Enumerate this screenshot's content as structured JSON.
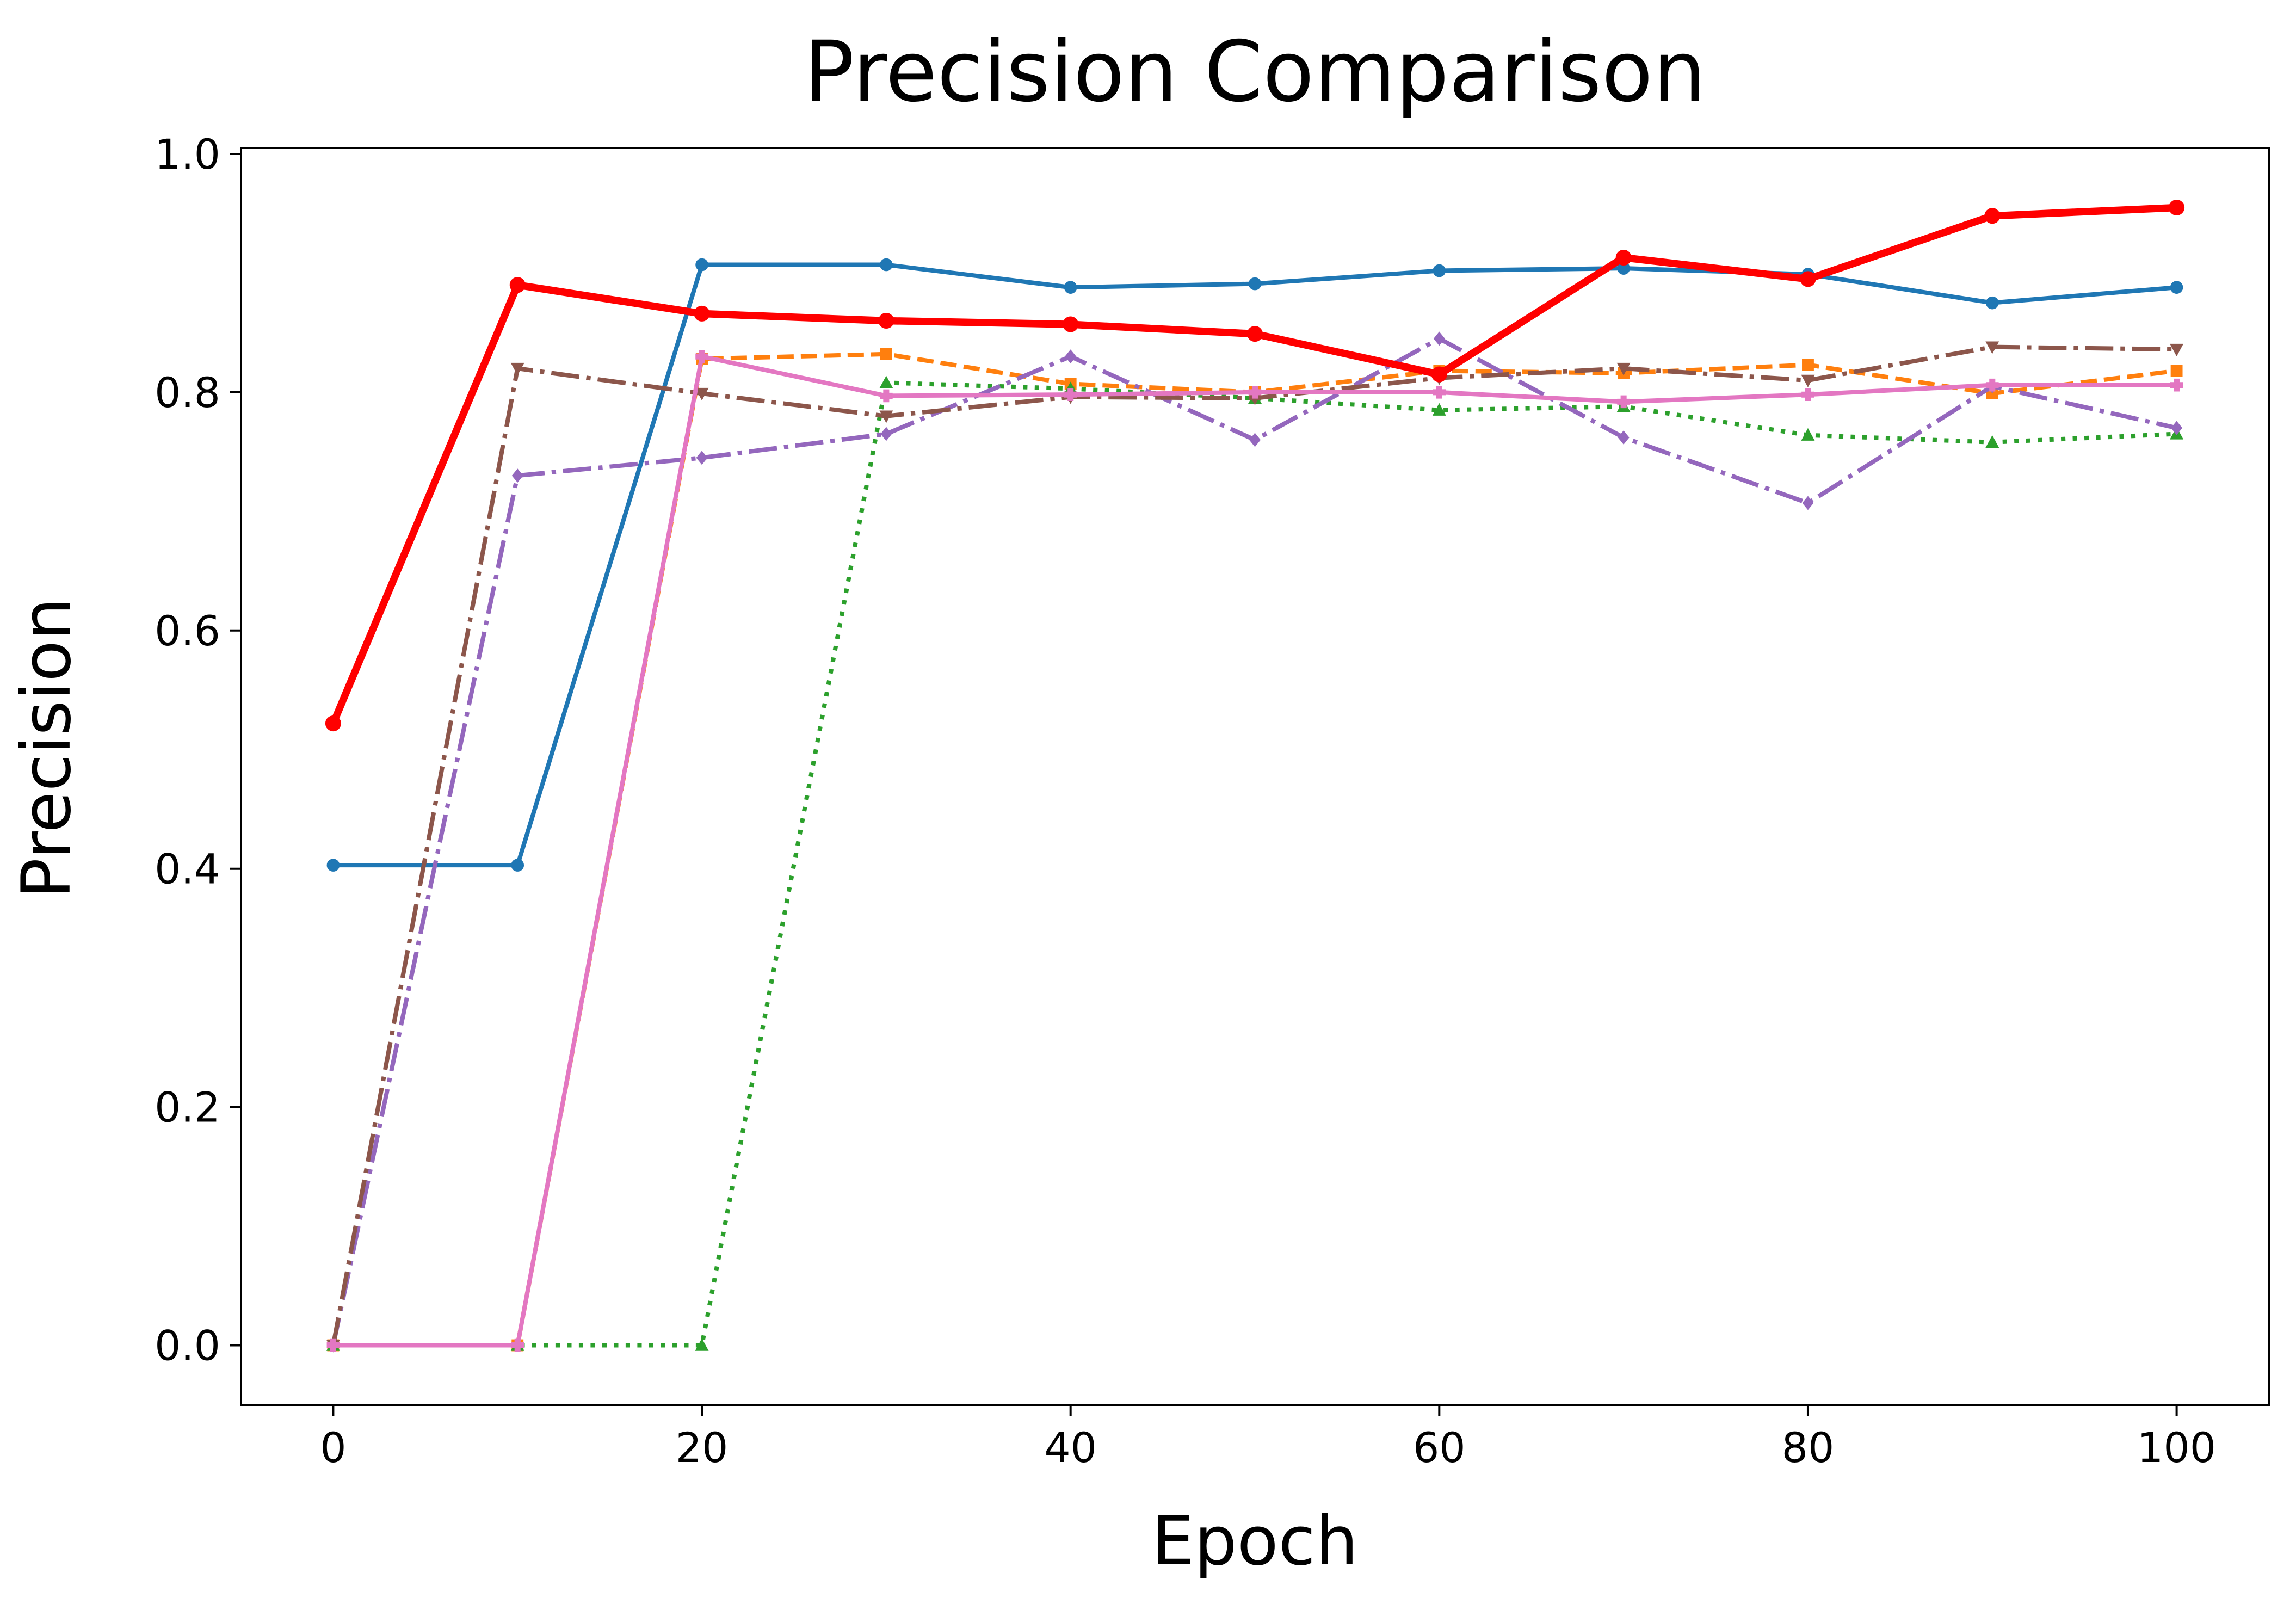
{
  "chart_data": {
    "type": "line",
    "title": "Precision Comparison",
    "xlabel": "Epoch",
    "ylabel": "Precision",
    "xlim": [
      -5,
      105
    ],
    "ylim": [
      -0.05,
      1.005
    ],
    "grid": false,
    "x": [
      0,
      10,
      20,
      30,
      40,
      50,
      60,
      70,
      80,
      90,
      100
    ],
    "xticks": [
      0,
      20,
      40,
      60,
      80,
      100
    ],
    "xtick_labels": [
      "0",
      "20",
      "40",
      "60",
      "80",
      "100"
    ],
    "yticks": [
      0.0,
      0.2,
      0.4,
      0.6,
      0.8,
      1.0
    ],
    "ytick_labels": [
      "0.0",
      "0.2",
      "0.4",
      "0.6",
      "0.8",
      "1.0"
    ],
    "series": [
      {
        "color": "#1f77b4",
        "linestyle": "solid",
        "marker": "circle",
        "linewidth": 3,
        "markersize": 8,
        "values": [
          0.403,
          0.403,
          0.907,
          0.907,
          0.888,
          0.891,
          0.902,
          0.904,
          0.899,
          0.875,
          0.888
        ]
      },
      {
        "color": "#ff7f0e",
        "linestyle": "dashed",
        "marker": "square",
        "linewidth": 3,
        "markersize": 8,
        "values": [
          0.0,
          0.0,
          0.828,
          0.832,
          0.807,
          0.8,
          0.818,
          0.816,
          0.823,
          0.799,
          0.818
        ]
      },
      {
        "color": "#2ca02c",
        "linestyle": "dotted",
        "marker": "triangle-up",
        "linewidth": 3,
        "markersize": 8,
        "values": [
          0.0,
          0.0,
          0.0,
          0.808,
          0.803,
          0.795,
          0.785,
          0.788,
          0.764,
          0.758,
          0.765
        ]
      },
      {
        "color": "#9467bd",
        "linestyle": "dashdot",
        "marker": "diamond",
        "linewidth": 3,
        "markersize": 8,
        "values": [
          0.0,
          0.73,
          0.745,
          0.765,
          0.83,
          0.76,
          0.845,
          0.762,
          0.707,
          0.805,
          0.77
        ]
      },
      {
        "color": "#8c564b",
        "linestyle": "dashdot",
        "marker": "triangle-down",
        "linewidth": 3,
        "markersize": 8,
        "values": [
          0.0,
          0.82,
          0.799,
          0.78,
          0.796,
          0.795,
          0.812,
          0.82,
          0.81,
          0.838,
          0.836
        ]
      },
      {
        "color": "#e377c2",
        "linestyle": "solid",
        "marker": "plus",
        "linewidth": 3,
        "markersize": 8,
        "values": [
          0.0,
          0.0,
          0.83,
          0.797,
          0.798,
          0.8,
          0.8,
          0.792,
          0.798,
          0.806,
          0.806
        ]
      },
      {
        "color": "#ff0000",
        "linestyle": "solid",
        "marker": "circle",
        "linewidth": 5,
        "markersize": 10,
        "values": [
          0.522,
          0.89,
          0.866,
          0.86,
          0.857,
          0.849,
          0.815,
          0.913,
          0.895,
          0.948,
          0.955
        ]
      }
    ]
  }
}
